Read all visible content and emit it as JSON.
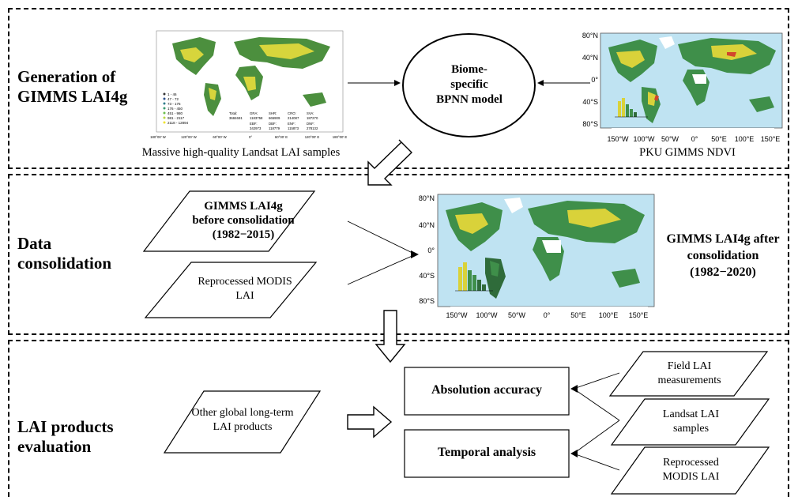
{
  "sections": {
    "generation": "Generation of\nGIMMS LAI4g",
    "consolidation": "Data\nconsolidation",
    "evaluation": "LAI products\nevaluation"
  },
  "generation": {
    "landsat_caption": "Massive high-quality Landsat LAI samples",
    "model_label": "Biome-\nspecific\nBPNN model",
    "ndvi_caption": "PKU GIMMS NDVI",
    "legend_items": [
      "1 - 46",
      "47 - 72",
      "73 - 175",
      "176 - 450",
      "451 - 980",
      "981 - 2117",
      "2118 - 12894"
    ],
    "stats": [
      {
        "label": "Total:",
        "value": "3684691"
      },
      {
        "label": "GRA:",
        "value": "1183758"
      },
      {
        "label": "SHR:",
        "value": "665909"
      },
      {
        "label": "CRO:",
        "value": "214087"
      },
      {
        "label": "SVA:",
        "value": "187270"
      },
      {
        "label": "EBF:",
        "value": "342973"
      },
      {
        "label": "DBF:",
        "value": "118779"
      },
      {
        "label": "ENF:",
        "value": "115873"
      },
      {
        "label": "DNF:",
        "value": "278132"
      }
    ],
    "x_ticks": [
      "180°00' W",
      "120°00' W",
      "60°00' W",
      "0°",
      "60°00' E",
      "120°00' E",
      "180°00' E"
    ]
  },
  "consolidation": {
    "before_label": "GIMMS LAI4g\nbefore consolidation\n(1982−2015)",
    "modis_label": "Reprocessed MODIS\nLAI",
    "after_label": "GIMMS LAI4g after\nconsolidation\n(1982−2020)"
  },
  "map_axes": {
    "lat_ticks": [
      "80°N",
      "40°N",
      "0°",
      "40°S",
      "80°S"
    ],
    "lon_ticks": [
      "150°W",
      "100°W",
      "50°W",
      "0°",
      "50°E",
      "100°E",
      "150°E"
    ]
  },
  "evaluation": {
    "other_products": "Other global long-term\nLAI products",
    "absolute_accuracy": "Absolution accuracy",
    "temporal_analysis": "Temporal analysis",
    "field_lai": "Field LAI\nmeasurements",
    "landsat_samples": "Landsat LAI\nsamples",
    "modis_lai": "Reprocessed\nMODIS LAI"
  },
  "colors": {
    "ocean": "#bfe3f2",
    "land_green": "#3f8f4a",
    "land_yellow": "#d9d23a",
    "land_red": "#d2452c",
    "ice": "#ffffff"
  }
}
